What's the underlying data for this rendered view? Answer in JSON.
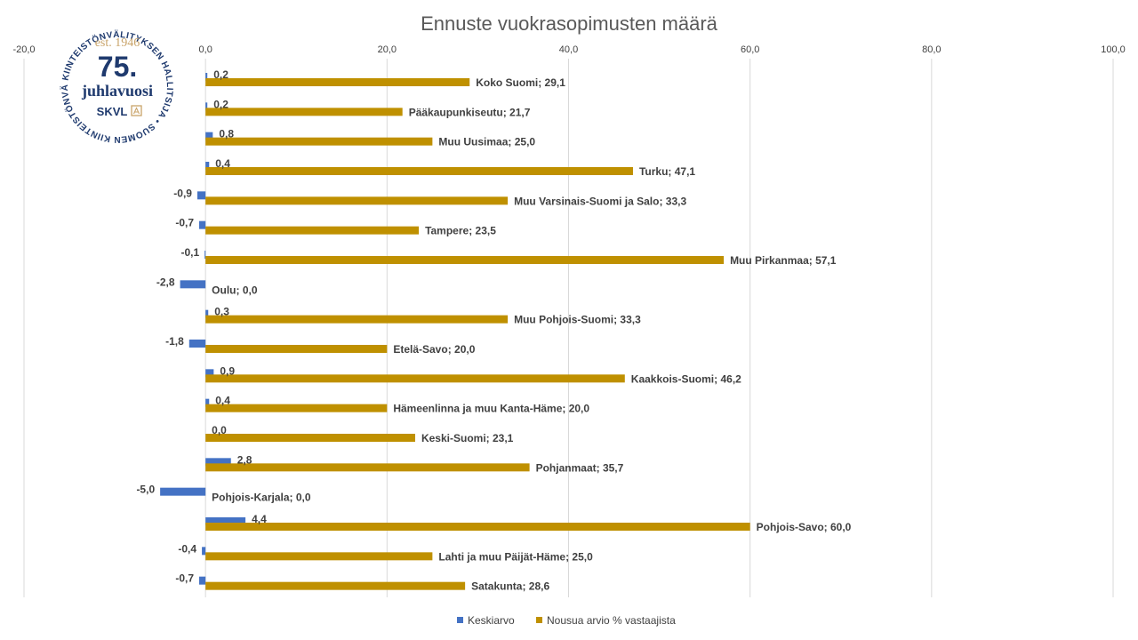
{
  "chart_data": {
    "type": "bar",
    "orientation": "horizontal",
    "title": "Ennuste vuokrasopimusten määrä",
    "xlim": [
      -20,
      100
    ],
    "xticks": [
      "-20,0",
      "0,0",
      "20,0",
      "40,0",
      "60,0",
      "80,0",
      "100,0"
    ],
    "xtick_values": [
      -20,
      0,
      20,
      40,
      60,
      80,
      100
    ],
    "grid": true,
    "legend_position": "bottom",
    "categories": [
      "Koko Suomi",
      "Pääkaupunkiseutu",
      "Muu Uusimaa",
      "Turku",
      "Muu Varsinais-Suomi ja Salo",
      "Tampere",
      "Muu Pirkanmaa",
      "Oulu",
      "Muu Pohjois-Suomi",
      "Etelä-Savo",
      "Kaakkois-Suomi",
      "Hämeenlinna ja muu Kanta-Häme",
      "Keski-Suomi",
      "Pohjanmaat",
      "Pohjois-Karjala",
      "Pohjois-Savo",
      "Lahti ja muu Päijät-Häme",
      "Satakunta"
    ],
    "series": [
      {
        "name": "Keskiarvo",
        "color": "#4472c4",
        "values": [
          0.2,
          0.2,
          0.8,
          0.4,
          -0.9,
          -0.7,
          -0.1,
          -2.8,
          0.3,
          -1.8,
          0.9,
          0.4,
          0.0,
          2.8,
          -5.0,
          4.4,
          -0.4,
          -0.7
        ],
        "labels": [
          "0,2",
          "0,2",
          "0,8",
          "0,4",
          "-0,9",
          "-0,7",
          "-0,1",
          "-2,8",
          "0,3",
          "-1,8",
          "0,9",
          "0,4",
          "0,0",
          "2,8",
          "-5,0",
          "4,4",
          "-0,4",
          "-0,7"
        ]
      },
      {
        "name": "Nousua arvio % vastaajista",
        "color": "#bf9000",
        "values": [
          29.1,
          21.7,
          25.0,
          47.1,
          33.3,
          23.5,
          57.1,
          0.0,
          33.3,
          20.0,
          46.2,
          20.0,
          23.1,
          35.7,
          0.0,
          60.0,
          25.0,
          28.6
        ],
        "labels": [
          "Koko Suomi; 29,1",
          "Pääkaupunkiseutu; 21,7",
          "Muu Uusimaa; 25,0",
          "Turku; 47,1",
          "Muu Varsinais-Suomi ja Salo; 33,3",
          "Tampere; 23,5",
          "Muu Pirkanmaa;  57,1",
          "Oulu; 0,0",
          "Muu Pohjois-Suomi; 33,3",
          "Etelä-Savo; 20,0",
          "Kaakkois-Suomi; 46,2",
          "Hämeenlinna ja muu Kanta-Häme; 20,0",
          "Keski-Suomi; 23,1",
          "Pohjanmaat; 35,7",
          "Pohjois-Karjala; 0,0",
          "Pohjois-Savo; 60,0",
          "Lahti ja muu Päijät-Häme;  25,0",
          "Satakunta; 28,6"
        ]
      }
    ]
  },
  "logo": {
    "est": "est. 1946",
    "number": "75.",
    "text": "juhlavuosi",
    "brand": "SKVL",
    "ring_text": "KIINTEISTÖNVÄLITYKSEN HALLITSIJA • SUOMEN KIINTEISTÖNVÄLITTÄJÄT RY •",
    "colors": {
      "navy": "#1f3a6e",
      "gold": "#c9a46a"
    }
  }
}
